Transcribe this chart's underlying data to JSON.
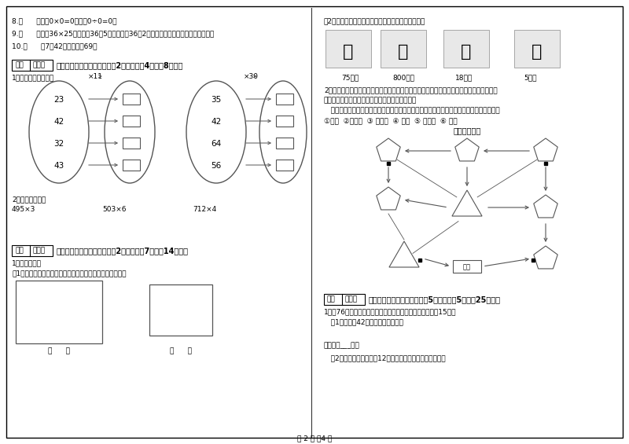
{
  "bg_color": "#f5f5f0",
  "page_width": 8.0,
  "page_height": 5.65,
  "dpi": 100,
  "lines_8_10": [
    "8.（      ）因为0×0=0，所以0÷0=0。",
    "9.（      ）计算36×25时，先把36和5相乘，再把36和2相乘，最后把两次乘得的结果相加。",
    "10.（      ）7个42相加的和是69。"
  ],
  "score_label": "得分",
  "reviewer_label": "评卷人",
  "sec4_title": "四、看清题目，细心计算（共2小题，每题4分，共8分）。",
  "sec4_sub1": "1．算一算，填一填。",
  "oval1_nums": [
    "23",
    "42",
    "32",
    "43"
  ],
  "oval1_op": "×11",
  "oval2_nums": [
    "35",
    "42",
    "64",
    "56"
  ],
  "oval2_op": "×30",
  "sec4_sub2": "2．估算并计算。",
  "estimates": [
    "495×3",
    "503×6",
    "712×4"
  ],
  "sec5_title": "五、认真思考，综合能力（共2小题，每题7分，共14分）。",
  "sec5_sub1": "1．实践操作：",
  "sec5_sub1a": "（1），量出下面各图形中每条边的长度。（以毫米为单位）",
  "sec5_box_labels": [
    "（      ）",
    "（      ）"
  ],
  "right_text1": "（2），把每小叶行的路程与合适的出行方式连起来。",
  "distances": [
    "75千米",
    "800千米",
    "18千米",
    "5千米"
  ],
  "zoo_text1a": "2．走进动物园大门，正北面是狮子山和熊猫馆，狮子山的东侧是飞禽馆，西侧是鹿园，大象",
  "zoo_text1b": "馆和鱼馆的场地分别在动物园的东北角和西北角。",
  "zoo_text2": "   根据小强的描述，请你把这些动物场馆所在的位置，在动物园的导游图上用序号表示出来。",
  "zoo_legend": "①狮山  ②熊猫馆  ③ 飞禽馆  ④ 鹿园  ⑤ 大象馆  ⑥ 鱼馆",
  "zoo_map_title": "动物园导游图",
  "sec6_title": "六、活用知识，解决问题（共5小题，每题5分，共25分）。",
  "sec6_q1": "1．朐76个座位的森林音乐厅将举行音乐会，每张票售价是15元。",
  "sec6_q1a": "   （1）已售出42张票，收款多少元？",
  "sec6_ans1": "答：收款___元。",
  "sec6_q1b": "   （2）把剩余的票按每张12元全部售出，可以收款多少元？",
  "page_label": "第 2 页 共4 页"
}
